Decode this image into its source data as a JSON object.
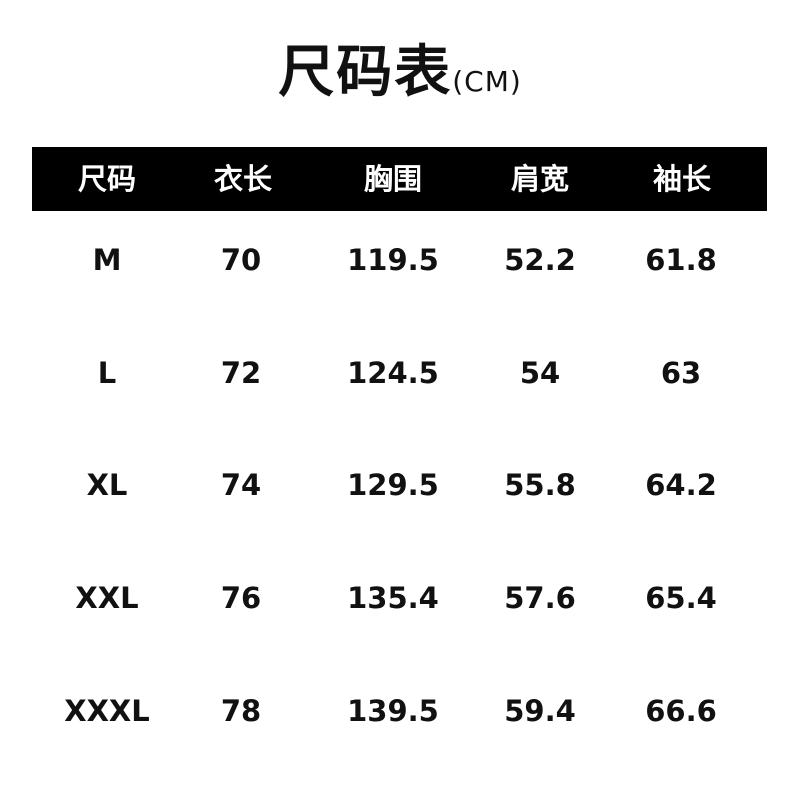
{
  "title": {
    "main": "尺码表",
    "unit": "(CM)"
  },
  "table": {
    "headers": [
      "尺码",
      "衣长",
      "胸围",
      "肩宽",
      "袖长"
    ],
    "rows": [
      [
        "M",
        "70",
        "119.5",
        "52.2",
        "61.8"
      ],
      [
        "L",
        "72",
        "124.5",
        "54",
        "63"
      ],
      [
        "XL",
        "74",
        "129.5",
        "55.8",
        "64.2"
      ],
      [
        "XXL",
        "76",
        "135.4",
        "57.6",
        "65.4"
      ],
      [
        "XXXL",
        "78",
        "139.5",
        "59.4",
        "66.6"
      ]
    ]
  },
  "colors": {
    "header_bg": "#000000",
    "header_text": "#ffffff",
    "text": "#111111"
  }
}
